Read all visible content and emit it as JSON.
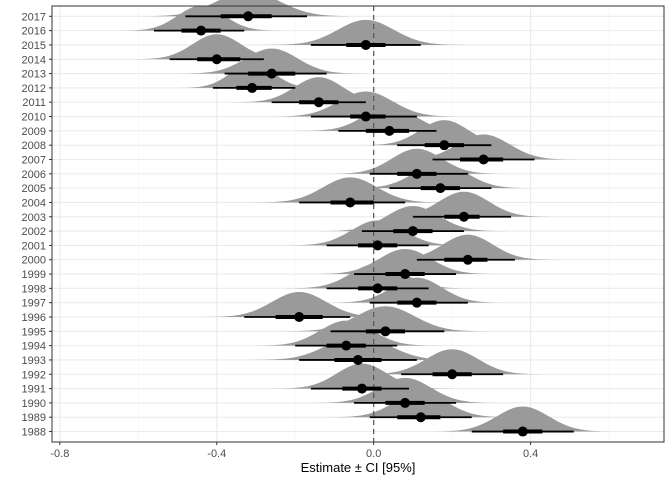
{
  "chart_data": {
    "type": "scatter",
    "subtype": "forest plot with density (halfeye) distributions",
    "title": "",
    "xlabel": "Estimate ± CI [95%]",
    "ylabel": "",
    "xlim": [
      -0.82,
      0.74
    ],
    "xticks": [
      -0.8,
      -0.4,
      0.0,
      0.4
    ],
    "xtick_labels": [
      "-0.8",
      "-0.4",
      "0.0",
      "0.4"
    ],
    "reference_line": {
      "x": 0,
      "style": "dashed",
      "color": "#555555"
    },
    "grid": true,
    "legend": "none",
    "colors": {
      "density": "#9a9a9a",
      "point": "#000000",
      "interval": "#000000",
      "panel_border": "#333333",
      "grid_major": "#ebebeb",
      "grid_minor": "#f5f5f5"
    },
    "rows": [
      {
        "year": "2017",
        "estimate": -0.32,
        "ci66": [
          -0.39,
          -0.26
        ],
        "ci95": [
          -0.48,
          -0.17
        ]
      },
      {
        "year": "2016",
        "estimate": -0.44,
        "ci66": [
          -0.49,
          -0.39
        ],
        "ci95": [
          -0.56,
          -0.33
        ]
      },
      {
        "year": "2015",
        "estimate": -0.02,
        "ci66": [
          -0.07,
          0.03
        ],
        "ci95": [
          -0.16,
          0.12
        ]
      },
      {
        "year": "2014",
        "estimate": -0.4,
        "ci66": [
          -0.45,
          -0.34
        ],
        "ci95": [
          -0.52,
          -0.28
        ]
      },
      {
        "year": "2013",
        "estimate": -0.26,
        "ci66": [
          -0.32,
          -0.2
        ],
        "ci95": [
          -0.38,
          -0.12
        ]
      },
      {
        "year": "2012",
        "estimate": -0.31,
        "ci66": [
          -0.35,
          -0.26
        ],
        "ci95": [
          -0.41,
          -0.2
        ]
      },
      {
        "year": "2011",
        "estimate": -0.14,
        "ci66": [
          -0.19,
          -0.09
        ],
        "ci95": [
          -0.26,
          -0.02
        ]
      },
      {
        "year": "2010",
        "estimate": -0.02,
        "ci66": [
          -0.06,
          0.03
        ],
        "ci95": [
          -0.16,
          0.11
        ]
      },
      {
        "year": "2009",
        "estimate": 0.04,
        "ci66": [
          -0.02,
          0.09
        ],
        "ci95": [
          -0.09,
          0.16
        ]
      },
      {
        "year": "2008",
        "estimate": 0.18,
        "ci66": [
          0.13,
          0.23
        ],
        "ci95": [
          0.06,
          0.3
        ]
      },
      {
        "year": "2007",
        "estimate": 0.28,
        "ci66": [
          0.22,
          0.33
        ],
        "ci95": [
          0.15,
          0.41
        ]
      },
      {
        "year": "2006",
        "estimate": 0.11,
        "ci66": [
          0.06,
          0.16
        ],
        "ci95": [
          -0.01,
          0.24
        ]
      },
      {
        "year": "2005",
        "estimate": 0.17,
        "ci66": [
          0.12,
          0.22
        ],
        "ci95": [
          0.04,
          0.3
        ]
      },
      {
        "year": "2004",
        "estimate": -0.06,
        "ci66": [
          -0.11,
          0.0
        ],
        "ci95": [
          -0.19,
          0.08
        ]
      },
      {
        "year": "2003",
        "estimate": 0.23,
        "ci66": [
          0.18,
          0.27
        ],
        "ci95": [
          0.1,
          0.35
        ]
      },
      {
        "year": "2002",
        "estimate": 0.1,
        "ci66": [
          0.05,
          0.15
        ],
        "ci95": [
          -0.03,
          0.23
        ]
      },
      {
        "year": "2001",
        "estimate": 0.01,
        "ci66": [
          -0.04,
          0.06
        ],
        "ci95": [
          -0.12,
          0.14
        ]
      },
      {
        "year": "2000",
        "estimate": 0.24,
        "ci66": [
          0.18,
          0.29
        ],
        "ci95": [
          0.11,
          0.36
        ]
      },
      {
        "year": "1999",
        "estimate": 0.08,
        "ci66": [
          0.03,
          0.13
        ],
        "ci95": [
          -0.05,
          0.21
        ]
      },
      {
        "year": "1998",
        "estimate": 0.01,
        "ci66": [
          -0.04,
          0.06
        ],
        "ci95": [
          -0.12,
          0.14
        ]
      },
      {
        "year": "1997",
        "estimate": 0.11,
        "ci66": [
          0.06,
          0.16
        ],
        "ci95": [
          -0.01,
          0.24
        ]
      },
      {
        "year": "1996",
        "estimate": -0.19,
        "ci66": [
          -0.25,
          -0.13
        ],
        "ci95": [
          -0.33,
          -0.06
        ]
      },
      {
        "year": "1995",
        "estimate": 0.03,
        "ci66": [
          -0.02,
          0.08
        ],
        "ci95": [
          -0.11,
          0.18
        ]
      },
      {
        "year": "1994",
        "estimate": -0.07,
        "ci66": [
          -0.12,
          -0.02
        ],
        "ci95": [
          -0.2,
          0.06
        ]
      },
      {
        "year": "1993",
        "estimate": -0.04,
        "ci66": [
          -0.1,
          0.02
        ],
        "ci95": [
          -0.19,
          0.11
        ]
      },
      {
        "year": "1992",
        "estimate": 0.2,
        "ci66": [
          0.15,
          0.25
        ],
        "ci95": [
          0.07,
          0.33
        ]
      },
      {
        "year": "1991",
        "estimate": -0.03,
        "ci66": [
          -0.08,
          0.02
        ],
        "ci95": [
          -0.16,
          0.09
        ]
      },
      {
        "year": "1990",
        "estimate": 0.08,
        "ci66": [
          0.03,
          0.13
        ],
        "ci95": [
          -0.05,
          0.21
        ]
      },
      {
        "year": "1989",
        "estimate": 0.12,
        "ci66": [
          0.06,
          0.17
        ],
        "ci95": [
          -0.01,
          0.25
        ]
      },
      {
        "year": "1988",
        "estimate": 0.38,
        "ci66": [
          0.33,
          0.43
        ],
        "ci95": [
          0.25,
          0.51
        ]
      }
    ]
  }
}
